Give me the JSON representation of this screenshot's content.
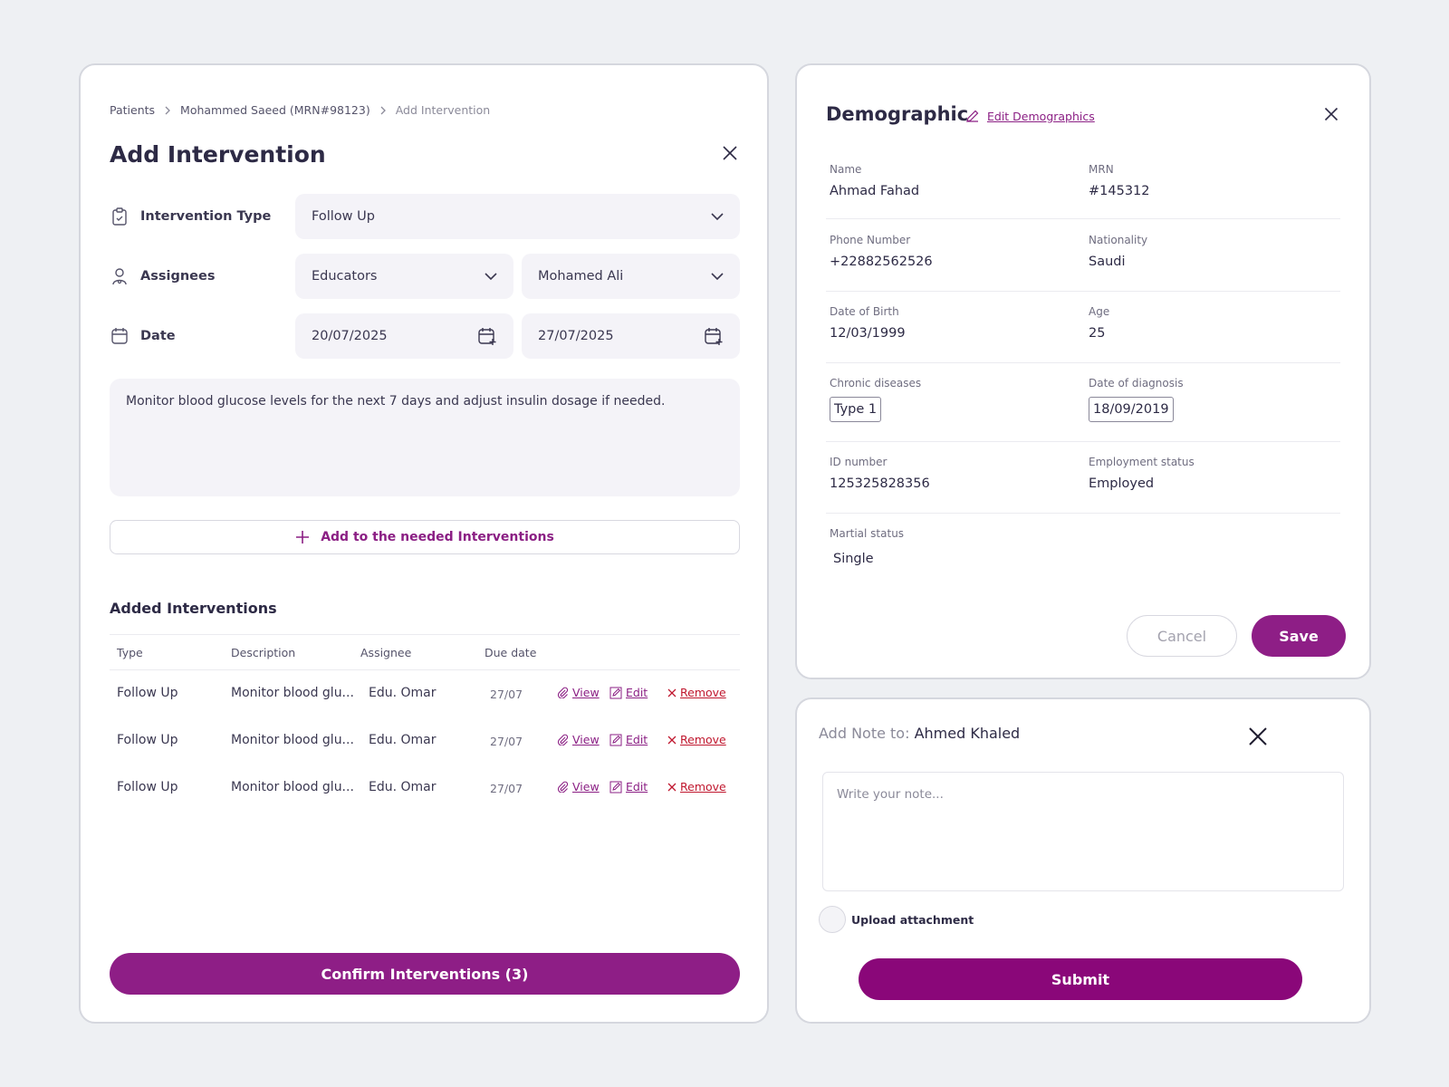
{
  "colors": {
    "accent": "#8e1e86",
    "danger": "#c0182f",
    "field_bg": "#f4f3f8"
  },
  "breadcrumb": [
    "Patients",
    "Mohammed Saeed (MRN#98123)",
    "Add Intervention"
  ],
  "intervention": {
    "title": "Add Intervention",
    "type_label": "Intervention Type",
    "type_value": "Follow Up",
    "assignees_label": "Assignees",
    "assignee_group": "Educators",
    "assignee_person": "Mohamed Ali",
    "date_label": "Date",
    "date_from": "20/07/2025",
    "date_to": "27/07/2025",
    "notes": "Monitor blood glucose levels for the next 7 days and adjust insulin dosage if needed.",
    "add_button": "Add to the needed Interventions",
    "added_title": "Added Interventions",
    "columns": [
      "Type",
      "Description",
      "Assignee",
      "Due date"
    ],
    "rows": [
      {
        "type": "Follow Up",
        "description": "Monitor blood glu...",
        "assignee": "Edu. Omar",
        "due": "27/07"
      },
      {
        "type": "Follow Up",
        "description": "Monitor blood glu...",
        "assignee": "Edu. Omar",
        "due": "27/07"
      },
      {
        "type": "Follow Up",
        "description": "Monitor blood glu...",
        "assignee": "Edu. Omar",
        "due": "27/07"
      }
    ],
    "actions": {
      "view": "View",
      "edit": "Edit",
      "remove": "Remove"
    },
    "confirm_button": "Confirm Interventions (3)"
  },
  "demographic": {
    "title": "Demographic",
    "edit_link": "Edit Demographics",
    "name_label": "Name",
    "name": "Ahmad Fahad",
    "mrn_label": "MRN",
    "mrn": "#145312",
    "phone_label": "Phone Number",
    "phone": "+22882562526",
    "nationality_label": "Nationality",
    "nationality": "Saudi",
    "dob_label": "Date of Birth",
    "dob": "12/03/1999",
    "age_label": "Age",
    "age": "25",
    "chronic_label": "Chronic diseases",
    "chronic": "Type 1",
    "diagnosis_label": "Date of diagnosis",
    "diagnosis": "18/09/2019",
    "id_label": "ID number",
    "id": "125325828356",
    "employment_label": "Employment status",
    "employment": "Employed",
    "marital_label": "Martial status",
    "marital": "Single",
    "cancel": "Cancel",
    "save": "Save"
  },
  "note": {
    "prefix": "Add Note to: ",
    "person": "Ahmed Khaled",
    "placeholder": "Write your note...",
    "upload": "Upload attachment",
    "submit": "Submit"
  }
}
